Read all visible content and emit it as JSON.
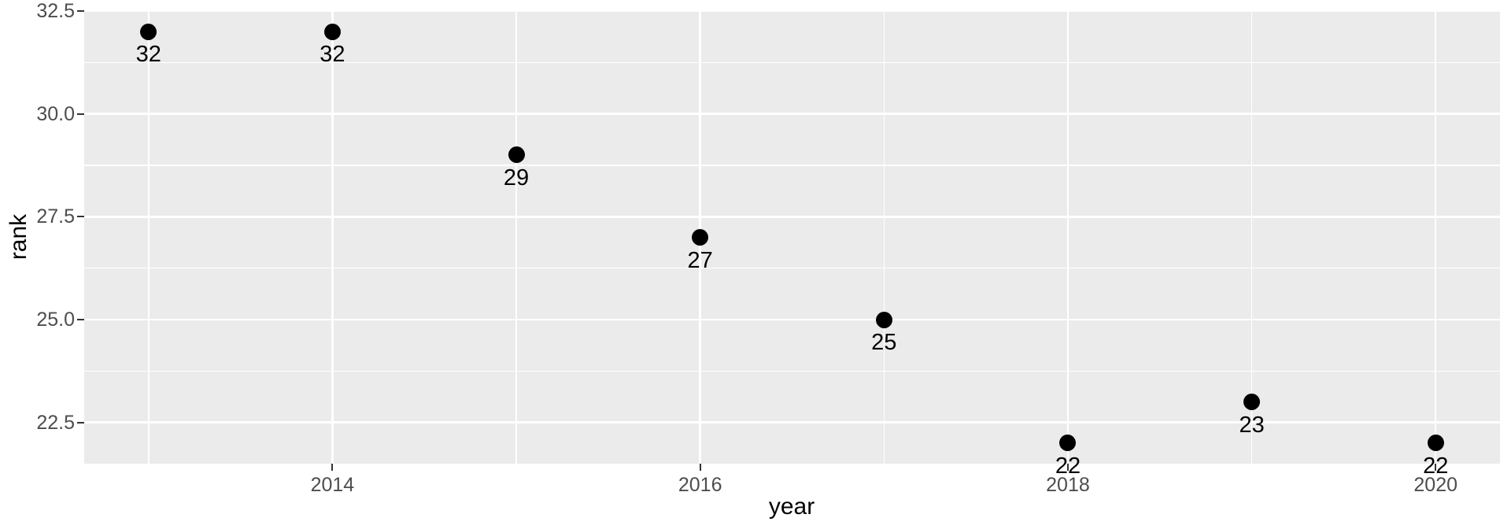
{
  "chart_data": {
    "type": "scatter",
    "title": "",
    "xlabel": "year",
    "ylabel": "rank",
    "x": [
      2013,
      2014,
      2015,
      2016,
      2017,
      2018,
      2019,
      2020
    ],
    "y": [
      32,
      32,
      29,
      27,
      25,
      22,
      23,
      22
    ],
    "point_labels": [
      "32",
      "32",
      "29",
      "27",
      "25",
      "22",
      "23",
      "22"
    ],
    "xlim": [
      2012.65,
      2020.35
    ],
    "ylim": [
      21.5,
      32.5
    ],
    "x_ticks": {
      "values": [
        2014,
        2016,
        2018,
        2020
      ],
      "labels": [
        "2014",
        "2016",
        "2018",
        "2020"
      ]
    },
    "y_ticks": {
      "values": [
        32.5,
        30.0,
        27.5,
        25.0,
        22.5
      ],
      "labels": [
        "32.5",
        "30.0",
        "27.5",
        "25.0",
        "22.5"
      ]
    },
    "x_minor": [
      2013,
      2015,
      2017,
      2019
    ],
    "y_minor": [
      31.25,
      28.75,
      26.25,
      23.75
    ],
    "grid": "major-and-minor",
    "legend": "none",
    "colors": {
      "panel_bg": "#EBEBEB",
      "grid": "#FFFFFF",
      "point": "#000000",
      "point_label": "#000000",
      "tick_label": "#4D4D4D",
      "tick_mark": "#333333",
      "axis_title": "#000000"
    }
  }
}
